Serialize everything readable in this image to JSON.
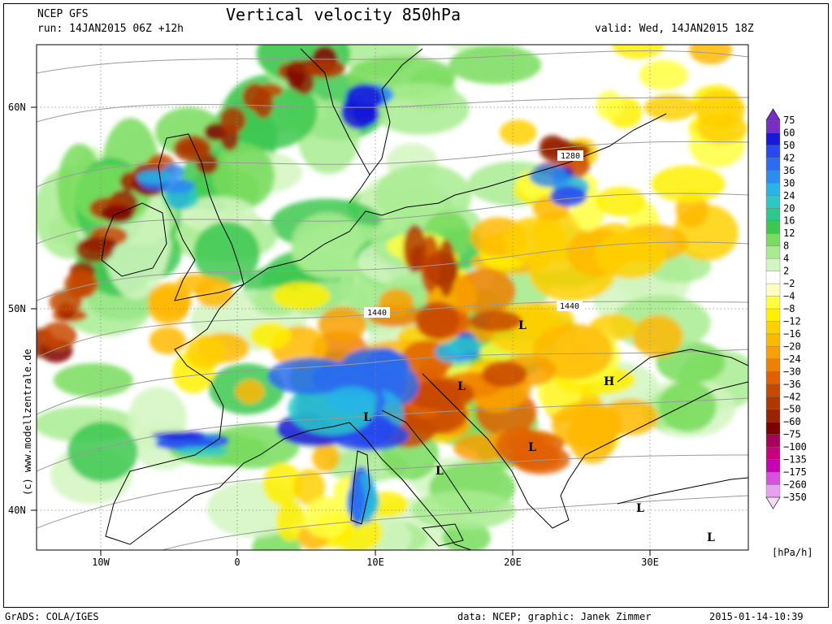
{
  "header": {
    "model": "NCEP GFS",
    "run": "run: 14JAN2015 06Z +12h",
    "title": "Vertical velocity 850hPa",
    "valid": "valid: Wed, 14JAN2015 18Z"
  },
  "map": {
    "lat_labels": [
      "60N",
      "50N",
      "40N"
    ],
    "lon_labels": [
      "10W",
      "0",
      "10E",
      "20E",
      "30E"
    ],
    "contour_labels": [
      "1280",
      "1440",
      "1440"
    ],
    "pressure_systems": [
      "L",
      "L",
      "L",
      "L",
      "L",
      "L",
      "H",
      "L"
    ],
    "watermark": "(c) www.modellzentrale.de"
  },
  "legend": {
    "unit": "[hPa/h]",
    "labels": [
      "75",
      "60",
      "50",
      "42",
      "36",
      "30",
      "24",
      "20",
      "16",
      "12",
      "8",
      "4",
      "2",
      "−2",
      "−4",
      "−8",
      "−12",
      "−16",
      "−20",
      "−24",
      "−30",
      "−36",
      "−42",
      "−50",
      "−60",
      "−75",
      "−100",
      "−135",
      "−175",
      "−260",
      "−350"
    ],
    "colors": [
      "#7a2cc8",
      "#1818d8",
      "#2848f0",
      "#2c6cf0",
      "#2c8cf0",
      "#28b4e8",
      "#2cc8c8",
      "#2cc88c",
      "#3cc850",
      "#78dc5c",
      "#a8ec90",
      "#d2f6c0",
      "#ffffff",
      "#ffffc0",
      "#ffff40",
      "#fff000",
      "#ffd000",
      "#ffb800",
      "#f8a000",
      "#f08000",
      "#e06000",
      "#c84800",
      "#b03800",
      "#982400",
      "#800000",
      "#a8005a",
      "#c8007c",
      "#c800b4",
      "#d850e0",
      "#e8a0f0"
    ],
    "arrow_top_color": "#7a2cc8",
    "arrow_bottom_color": "#f6d8f8"
  },
  "footer": {
    "left": "GrADS: COLA/IGES",
    "middle": "data: NCEP; graphic: Janek Zimmer",
    "right": "2015-01-14-10:39"
  }
}
